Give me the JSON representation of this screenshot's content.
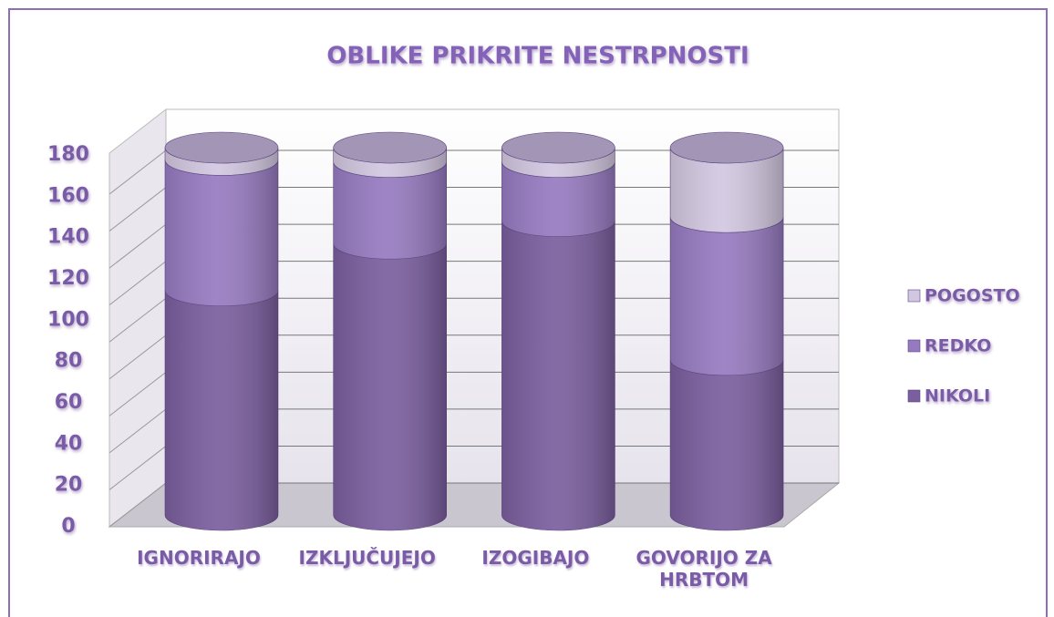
{
  "chart_data": {
    "type": "bar",
    "stacked": true,
    "shape": "cylinder",
    "title": "OBLIKE PRIKRITE NESTRPNOSTI",
    "categories": [
      "IGNORIRAJO",
      "IZKLJUČUJEJO",
      "IZOGIBAJO",
      "GOVORIJO ZA HRBTOM"
    ],
    "series": [
      {
        "name": "NIKOLI",
        "color": "#7a5e9e",
        "values": [
          110,
          133,
          144,
          76
        ]
      },
      {
        "name": "REDKO",
        "color": "#967ac0",
        "values": [
          64,
          40,
          29,
          70
        ]
      },
      {
        "name": "POGOSTO",
        "color": "#d2c7e0",
        "values": [
          6,
          7,
          7,
          34
        ]
      }
    ],
    "ylim": [
      0,
      180
    ],
    "yticks": [
      0,
      20,
      40,
      60,
      80,
      100,
      120,
      140,
      160,
      180
    ],
    "grid": true,
    "legend": "right"
  }
}
